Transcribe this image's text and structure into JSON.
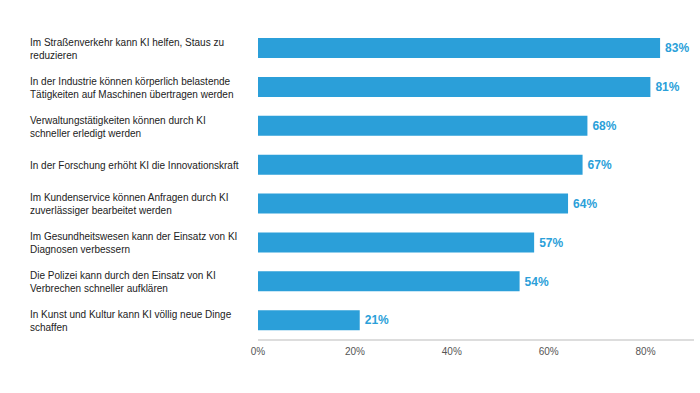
{
  "chart_data": {
    "type": "bar",
    "orientation": "horizontal",
    "categories": [
      "Im Straßenverkehr kann KI helfen, Staus zu reduzieren",
      "In der Industrie können körperlich belastende Tätigkeiten auf Maschinen übertragen werden",
      "Verwaltungstätigkeiten können durch KI schneller erledigt werden",
      "In der Forschung erhöht KI die Innovationskraft",
      "Im Kundenservice können Anfragen durch KI zuverlässiger bearbeitet werden",
      "Im Gesundheitswesen kann der Einsatz von KI Diagnosen verbessern",
      "Die Polizei kann durch den Einsatz von KI Verbrechen schneller aufklären",
      "In Kunst und Kultur kann KI völlig neue Dinge schaffen"
    ],
    "values": [
      83,
      81,
      68,
      67,
      64,
      57,
      54,
      21
    ],
    "value_labels": [
      "83%",
      "81%",
      "68%",
      "67%",
      "64%",
      "57%",
      "54%",
      "21%"
    ],
    "color": "#2b9fd9",
    "xlim": [
      0,
      90
    ],
    "xticks": [
      {
        "value": 0,
        "label": "0%"
      },
      {
        "value": 20,
        "label": "20%"
      },
      {
        "value": 40,
        "label": "40%"
      },
      {
        "value": 60,
        "label": "60%"
      },
      {
        "value": 80,
        "label": "80%"
      }
    ],
    "grid": false,
    "data_labels": true
  }
}
